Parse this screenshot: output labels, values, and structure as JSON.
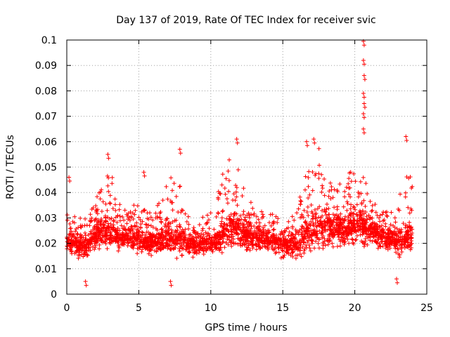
{
  "chart_data": {
    "type": "scatter",
    "title": "Day 137 of 2019, Rate Of TEC Index for receiver svic",
    "xlabel": "GPS time / hours",
    "ylabel": "ROTI / TECUs",
    "xlim": [
      0,
      25
    ],
    "ylim": [
      0,
      0.1
    ],
    "xticks": [
      0,
      5,
      10,
      15,
      20,
      25
    ],
    "xtick_labels": [
      "0",
      "5",
      "10",
      "15",
      "20",
      "25"
    ],
    "yticks": [
      0,
      0.01,
      0.02,
      0.03,
      0.04,
      0.05,
      0.06,
      0.07,
      0.08,
      0.09,
      0.1
    ],
    "ytick_labels": [
      "0",
      "0.01",
      "0.02",
      "0.03",
      "0.04",
      "0.05",
      "0.06",
      "0.07",
      "0.08",
      "0.09",
      "0.1"
    ],
    "grid": true,
    "marker": "+",
    "color": "#ff0000",
    "envelope": {
      "x": [
        0,
        0.3,
        0.8,
        1.3,
        2.0,
        2.5,
        3.0,
        3.5,
        4.0,
        4.5,
        5.0,
        5.5,
        6.0,
        6.5,
        7.0,
        7.5,
        8.0,
        8.5,
        9.0,
        9.5,
        10.0,
        10.5,
        11.0,
        11.5,
        12.0,
        12.5,
        13.0,
        13.5,
        14.0,
        14.5,
        15.0,
        15.5,
        16.0,
        16.5,
        17.0,
        17.5,
        18.0,
        18.5,
        19.0,
        19.5,
        20.0,
        20.5,
        21.0,
        21.5,
        22.0,
        22.5,
        23.0,
        23.5,
        24.0
      ],
      "low": [
        0.012,
        0.011,
        0.01,
        0.009,
        0.012,
        0.013,
        0.012,
        0.012,
        0.013,
        0.012,
        0.011,
        0.011,
        0.011,
        0.012,
        0.011,
        0.01,
        0.01,
        0.011,
        0.011,
        0.011,
        0.012,
        0.012,
        0.012,
        0.012,
        0.012,
        0.012,
        0.012,
        0.012,
        0.012,
        0.011,
        0.01,
        0.01,
        0.009,
        0.01,
        0.011,
        0.012,
        0.013,
        0.013,
        0.013,
        0.013,
        0.014,
        0.014,
        0.013,
        0.012,
        0.012,
        0.011,
        0.01,
        0.01,
        0.012
      ],
      "mid": [
        0.02,
        0.02,
        0.019,
        0.018,
        0.023,
        0.025,
        0.024,
        0.022,
        0.021,
        0.022,
        0.021,
        0.02,
        0.02,
        0.021,
        0.022,
        0.021,
        0.021,
        0.02,
        0.019,
        0.019,
        0.02,
        0.021,
        0.024,
        0.026,
        0.025,
        0.023,
        0.022,
        0.021,
        0.021,
        0.02,
        0.019,
        0.019,
        0.02,
        0.022,
        0.025,
        0.026,
        0.025,
        0.025,
        0.025,
        0.025,
        0.026,
        0.027,
        0.025,
        0.023,
        0.022,
        0.021,
        0.02,
        0.021,
        0.023
      ],
      "high": [
        0.04,
        0.032,
        0.03,
        0.03,
        0.038,
        0.045,
        0.05,
        0.038,
        0.033,
        0.035,
        0.036,
        0.033,
        0.032,
        0.037,
        0.045,
        0.05,
        0.04,
        0.033,
        0.03,
        0.031,
        0.034,
        0.04,
        0.052,
        0.055,
        0.048,
        0.04,
        0.036,
        0.033,
        0.032,
        0.031,
        0.03,
        0.03,
        0.034,
        0.045,
        0.055,
        0.058,
        0.048,
        0.043,
        0.045,
        0.048,
        0.05,
        0.052,
        0.04,
        0.035,
        0.033,
        0.032,
        0.036,
        0.05,
        0.048
      ]
    },
    "peaks": [
      {
        "x": 0.15,
        "y": 0.046
      },
      {
        "x": 2.85,
        "y": 0.055
      },
      {
        "x": 5.35,
        "y": 0.048
      },
      {
        "x": 7.85,
        "y": 0.057
      },
      {
        "x": 11.8,
        "y": 0.061
      },
      {
        "x": 16.65,
        "y": 0.06
      },
      {
        "x": 17.15,
        "y": 0.061
      },
      {
        "x": 20.6,
        "y": 0.0995
      },
      {
        "x": 20.6,
        "y": 0.092
      },
      {
        "x": 20.65,
        "y": 0.086
      },
      {
        "x": 20.6,
        "y": 0.079
      },
      {
        "x": 20.65,
        "y": 0.075
      },
      {
        "x": 20.6,
        "y": 0.071
      },
      {
        "x": 20.6,
        "y": 0.065
      },
      {
        "x": 23.55,
        "y": 0.062
      },
      {
        "x": 1.3,
        "y": 0.005
      },
      {
        "x": 7.2,
        "y": 0.005
      },
      {
        "x": 22.9,
        "y": 0.006
      }
    ],
    "n_points": 3000,
    "seed": 137
  }
}
